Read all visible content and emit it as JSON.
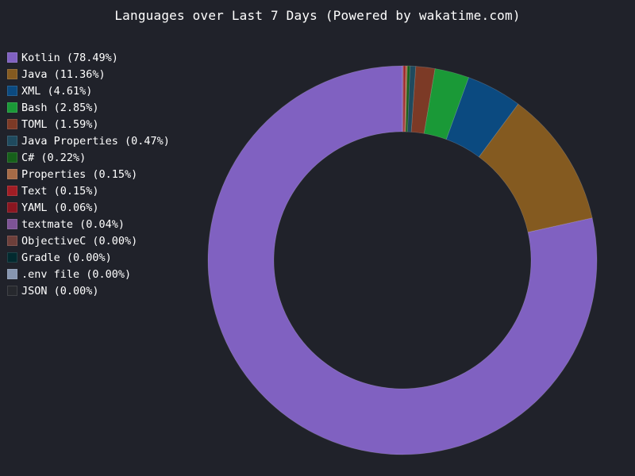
{
  "chart_data": {
    "type": "pie",
    "title": "Languages over Last 7 Days (Powered by wakatime.com)",
    "legend_position": "left",
    "series": [
      {
        "label": "Kotlin (78.49%)",
        "value": 78.49,
        "color": "#8061c1"
      },
      {
        "label": "Java (11.36%)",
        "value": 11.36,
        "color": "#845a20"
      },
      {
        "label": "XML (4.61%)",
        "value": 4.61,
        "color": "#0b4a80"
      },
      {
        "label": "Bash (2.85%)",
        "value": 2.85,
        "color": "#1a9937"
      },
      {
        "label": "TOML (1.59%)",
        "value": 1.59,
        "color": "#7c3a26"
      },
      {
        "label": "Java Properties (0.47%)",
        "value": 0.47,
        "color": "#1f4a5e"
      },
      {
        "label": "C# (0.22%)",
        "value": 0.22,
        "color": "#16601a"
      },
      {
        "label": "Properties (0.15%)",
        "value": 0.15,
        "color": "#a66b47"
      },
      {
        "label": "Text (0.15%)",
        "value": 0.15,
        "color": "#a11d24"
      },
      {
        "label": "YAML (0.06%)",
        "value": 0.06,
        "color": "#8a1620"
      },
      {
        "label": "textmate (0.04%)",
        "value": 0.04,
        "color": "#7d5395"
      },
      {
        "label": "ObjectiveC (0.00%)",
        "value": 0.0,
        "color": "#6d3f3a"
      },
      {
        "label": "Gradle (0.00%)",
        "value": 0.0,
        "color": "#022a2f"
      },
      {
        "label": ".env file (0.00%)",
        "value": 0.0,
        "color": "#8796b0"
      },
      {
        "label": "JSON (0.00%)",
        "value": 0.0,
        "color": "#26282d"
      }
    ],
    "background": "#20222a"
  }
}
